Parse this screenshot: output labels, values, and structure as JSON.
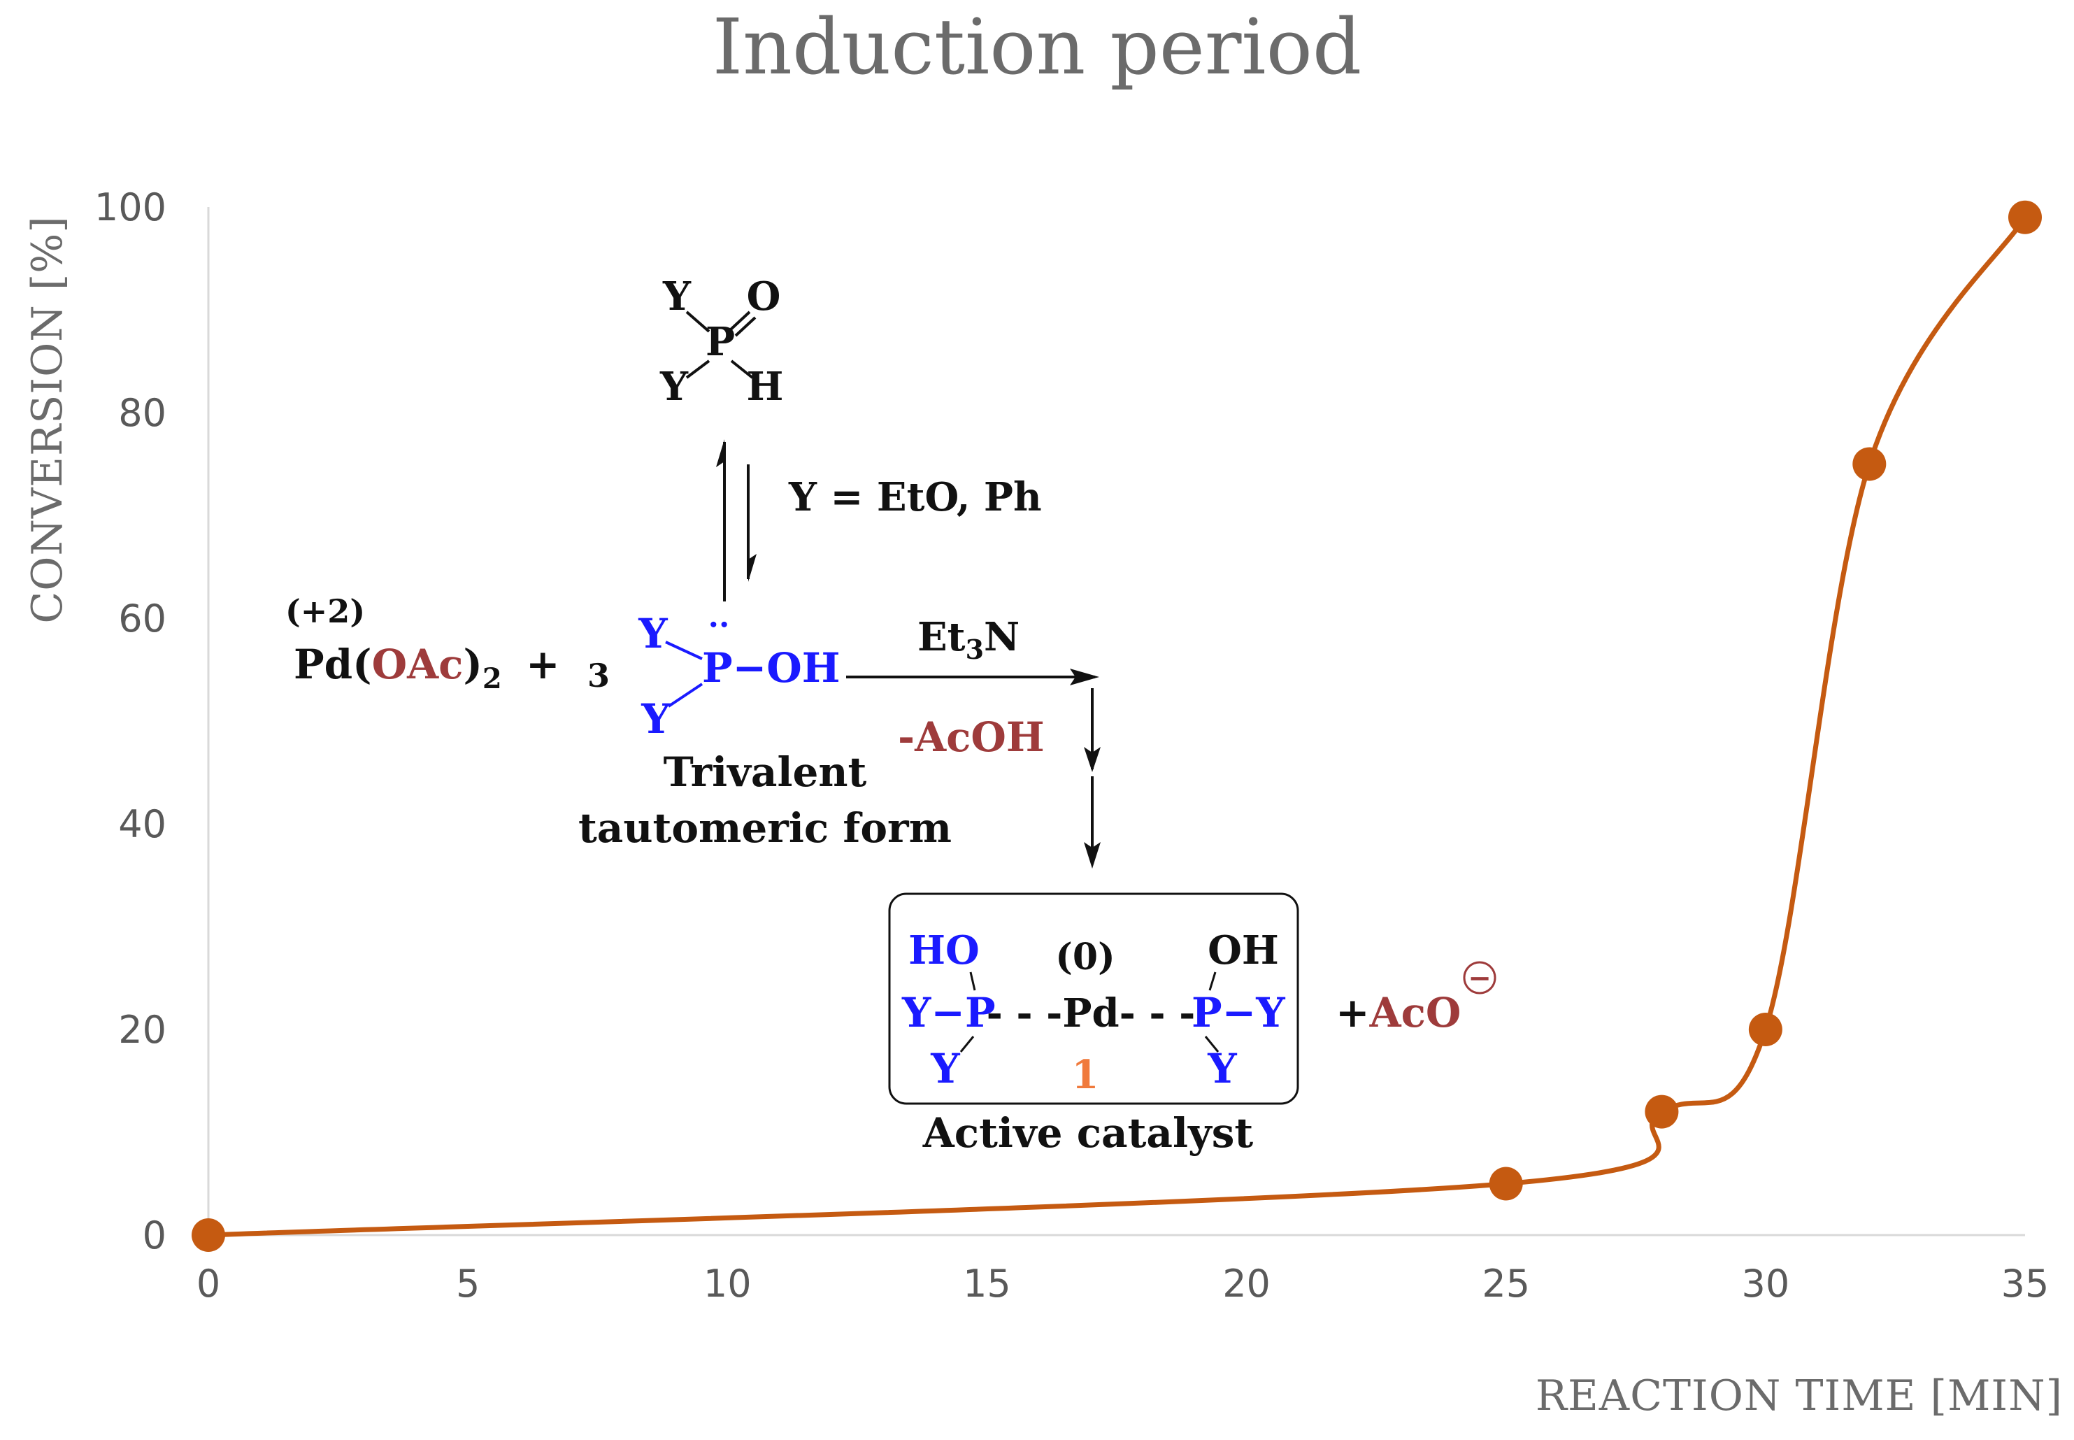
{
  "chart_data": {
    "type": "line",
    "title": "Induction period",
    "xlabel": "REACTION TIME [MIN]",
    "ylabel": "CONVERSION [%]",
    "xlim": [
      0,
      35
    ],
    "ylim": [
      0,
      100
    ],
    "x_ticks": [
      "0",
      "5",
      "10",
      "15",
      "20",
      "25",
      "30",
      "35"
    ],
    "y_ticks": [
      "0",
      "20",
      "40",
      "60",
      "80",
      "100"
    ],
    "grid": false,
    "series": [
      {
        "name": "Conversion",
        "color": "#c55a11",
        "x": [
          0,
          25,
          28,
          30,
          32,
          35
        ],
        "y": [
          0,
          5,
          12,
          20,
          75,
          99
        ]
      }
    ]
  },
  "scheme": {
    "top_molecule": {
      "y1": "Y",
      "p": "P",
      "o": "O",
      "y2": "Y",
      "h": "H"
    },
    "equilibrium_note": "Y = EtO, Ph",
    "pd_oxidation": "(+2)",
    "pd_part1": "Pd(",
    "pd_oac": "OAc",
    "pd_part2": ")",
    "pd_sub": "2",
    "plus": "+",
    "coefficient": "3",
    "trivalent": {
      "y_top": "Y",
      "lone_pair": "··",
      "p_oh": "P−OH",
      "y_bottom": "Y"
    },
    "reagent_main": "Et",
    "reagent_sub": "3",
    "reagent_end": "N",
    "byproduct": "-AcOH",
    "trivalent_caption_1": "Trivalent",
    "trivalent_caption_2": "tautomeric form",
    "catalyst": {
      "ho": "HO",
      "left_p": "Y−P",
      "left_y": "Y",
      "pd_oxidation": "(0)",
      "pd": "- - -Pd- - -",
      "compound_number": "1",
      "oh": "OH",
      "right_p": "P−Y",
      "right_y": "Y"
    },
    "aco_plus": "+",
    "aco": "AcO",
    "aco_charge": "−",
    "catalyst_caption": "Active catalyst"
  }
}
